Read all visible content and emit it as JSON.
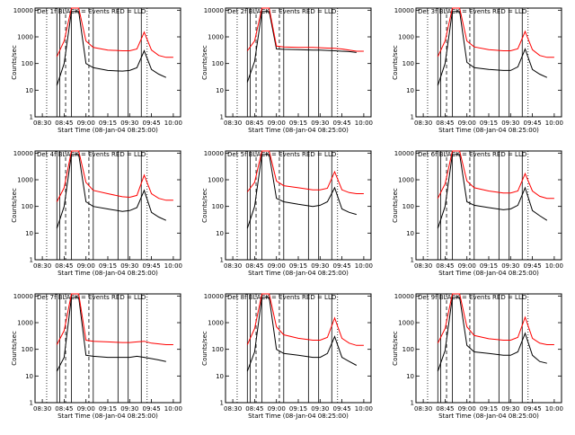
{
  "ylabel": "Counts/sec",
  "xlabel": "Start Time (08-Jan-04 08:25:00)",
  "ytick_labels": [
    "1",
    "10",
    "100",
    "1000",
    "10000"
  ],
  "xtick_labels": [
    "08:30",
    "08:45",
    "09:00",
    "09:15",
    "09:30",
    "09:45",
    "10:00"
  ],
  "colors": {
    "events": "#000000",
    "lld": "#ff0000"
  },
  "chart_data": [
    {
      "type": "line",
      "title": "Det 1f BLACK = Events  RED = LLD",
      "scale": "log",
      "ylim": [
        1,
        12000
      ],
      "x": [
        "08:25",
        "08:40",
        "08:45",
        "08:50",
        "08:55",
        "09:00",
        "09:05",
        "09:15",
        "09:25",
        "09:30",
        "09:35",
        "09:40",
        "09:45",
        "09:50",
        "09:55",
        "10:00"
      ],
      "series": [
        {
          "name": "Events",
          "values": [
            null,
            15,
            100,
            9000,
            9000,
            100,
            70,
            55,
            52,
            55,
            70,
            300,
            60,
            40,
            30,
            null
          ]
        },
        {
          "name": "LLD",
          "values": [
            null,
            180,
            700,
            12000,
            12000,
            700,
            400,
            320,
            300,
            300,
            350,
            1500,
            320,
            200,
            170,
            170
          ]
        }
      ]
    },
    {
      "type": "line",
      "title": "Det 2f BLACK = Events  RED = LLD",
      "scale": "log",
      "ylim": [
        1,
        12000
      ],
      "x": [
        "08:25",
        "08:40",
        "08:45",
        "08:50",
        "08:55",
        "09:00",
        "09:05",
        "09:15",
        "09:25",
        "09:30",
        "09:35",
        "09:40",
        "09:45",
        "09:50",
        "09:55",
        "10:00"
      ],
      "series": [
        {
          "name": "Events",
          "values": [
            null,
            20,
            120,
            9000,
            9000,
            350,
            340,
            330,
            320,
            320,
            310,
            300,
            290,
            280,
            260,
            null
          ]
        },
        {
          "name": "LLD",
          "values": [
            null,
            300,
            700,
            12000,
            12000,
            450,
            420,
            400,
            400,
            390,
            380,
            370,
            350,
            320,
            290,
            290
          ]
        }
      ]
    },
    {
      "type": "line",
      "title": "Det 3f BLACK = Events  RED = LLD",
      "scale": "log",
      "ylim": [
        1,
        12000
      ],
      "x": [
        "08:25",
        "08:40",
        "08:45",
        "08:50",
        "08:55",
        "09:00",
        "09:05",
        "09:15",
        "09:25",
        "09:30",
        "09:35",
        "09:40",
        "09:45",
        "09:50",
        "09:55",
        "10:00"
      ],
      "series": [
        {
          "name": "Events",
          "values": [
            null,
            15,
            100,
            9000,
            9000,
            110,
            70,
            60,
            55,
            55,
            75,
            350,
            60,
            40,
            30,
            null
          ]
        },
        {
          "name": "LLD",
          "values": [
            null,
            180,
            700,
            12000,
            12000,
            700,
            420,
            330,
            300,
            300,
            360,
            1600,
            330,
            200,
            170,
            170
          ]
        }
      ]
    },
    {
      "type": "line",
      "title": "Det 4f BLACK = Events  RED = LLD",
      "scale": "log",
      "ylim": [
        1,
        12000
      ],
      "x": [
        "08:25",
        "08:40",
        "08:45",
        "08:50",
        "08:55",
        "09:00",
        "09:05",
        "09:15",
        "09:25",
        "09:30",
        "09:35",
        "09:40",
        "09:45",
        "09:50",
        "09:55",
        "10:00"
      ],
      "series": [
        {
          "name": "Events",
          "values": [
            null,
            15,
            100,
            9000,
            9000,
            150,
            100,
            80,
            65,
            70,
            90,
            400,
            60,
            40,
            30,
            null
          ]
        },
        {
          "name": "LLD",
          "values": [
            null,
            150,
            500,
            12000,
            12000,
            800,
            400,
            300,
            230,
            220,
            260,
            1500,
            300,
            200,
            170,
            170
          ]
        }
      ]
    },
    {
      "type": "line",
      "title": "Det 5f BLACK = Events  RED = LLD",
      "scale": "log",
      "ylim": [
        1,
        12000
      ],
      "x": [
        "08:25",
        "08:40",
        "08:45",
        "08:50",
        "08:55",
        "09:00",
        "09:05",
        "09:15",
        "09:25",
        "09:30",
        "09:35",
        "09:40",
        "09:45",
        "09:50",
        "09:55",
        "10:00"
      ],
      "series": [
        {
          "name": "Events",
          "values": [
            null,
            15,
            100,
            9000,
            9000,
            200,
            150,
            120,
            100,
            110,
            150,
            500,
            80,
            60,
            50,
            null
          ]
        },
        {
          "name": "LLD",
          "values": [
            null,
            350,
            800,
            12000,
            12000,
            900,
            600,
            500,
            420,
            420,
            480,
            2000,
            420,
            330,
            300,
            300
          ]
        }
      ]
    },
    {
      "type": "line",
      "title": "Det 6f BLACK = Events  RED = LLD",
      "scale": "log",
      "ylim": [
        1,
        12000
      ],
      "x": [
        "08:25",
        "08:40",
        "08:45",
        "08:50",
        "08:55",
        "09:00",
        "09:05",
        "09:15",
        "09:25",
        "09:30",
        "09:35",
        "09:40",
        "09:45",
        "09:50",
        "09:55",
        "10:00"
      ],
      "series": [
        {
          "name": "Events",
          "values": [
            null,
            15,
            100,
            9000,
            9000,
            150,
            110,
            90,
            75,
            80,
            110,
            500,
            70,
            45,
            30,
            null
          ]
        },
        {
          "name": "LLD",
          "values": [
            null,
            200,
            700,
            12000,
            12000,
            900,
            500,
            380,
            320,
            320,
            380,
            1700,
            380,
            240,
            200,
            200
          ]
        }
      ]
    },
    {
      "type": "line",
      "title": "Det 7f BLACK = Events  RED = LLD",
      "scale": "log",
      "ylim": [
        1,
        12000
      ],
      "x": [
        "08:25",
        "08:40",
        "08:45",
        "08:50",
        "08:55",
        "09:00",
        "09:05",
        "09:15",
        "09:25",
        "09:30",
        "09:35",
        "09:40",
        "09:45",
        "09:50",
        "09:55",
        "10:00"
      ],
      "series": [
        {
          "name": "Events",
          "values": [
            null,
            15,
            50,
            9000,
            9000,
            60,
            55,
            50,
            50,
            50,
            55,
            50,
            45,
            40,
            35,
            null
          ]
        },
        {
          "name": "LLD",
          "values": [
            null,
            150,
            500,
            12000,
            12000,
            220,
            200,
            190,
            180,
            180,
            190,
            200,
            170,
            160,
            150,
            150
          ]
        }
      ]
    },
    {
      "type": "line",
      "title": "Det 8f BLACK = Events  RED = LLD",
      "scale": "log",
      "ylim": [
        1,
        12000
      ],
      "x": [
        "08:25",
        "08:40",
        "08:45",
        "08:50",
        "08:55",
        "09:00",
        "09:05",
        "09:15",
        "09:25",
        "09:30",
        "09:35",
        "09:40",
        "09:45",
        "09:50",
        "09:55",
        "10:00"
      ],
      "series": [
        {
          "name": "Events",
          "values": [
            null,
            15,
            80,
            9000,
            9000,
            100,
            70,
            60,
            50,
            50,
            70,
            300,
            50,
            35,
            25,
            null
          ]
        },
        {
          "name": "LLD",
          "values": [
            null,
            150,
            600,
            12000,
            12000,
            700,
            350,
            260,
            220,
            220,
            280,
            1500,
            260,
            170,
            140,
            140
          ]
        }
      ]
    },
    {
      "type": "line",
      "title": "Det 9f BLACK = Events  RED = LLD",
      "scale": "log",
      "ylim": [
        1,
        12000
      ],
      "x": [
        "08:25",
        "08:40",
        "08:45",
        "08:50",
        "08:55",
        "09:00",
        "09:05",
        "09:15",
        "09:25",
        "09:30",
        "09:35",
        "09:40",
        "09:45",
        "09:50",
        "09:55",
        "10:00"
      ],
      "series": [
        {
          "name": "Events",
          "values": [
            null,
            15,
            90,
            9000,
            9000,
            140,
            80,
            70,
            60,
            60,
            80,
            400,
            60,
            35,
            30,
            null
          ]
        },
        {
          "name": "LLD",
          "values": [
            null,
            170,
            600,
            12000,
            12000,
            700,
            330,
            250,
            220,
            220,
            280,
            1600,
            260,
            170,
            150,
            150
          ]
        }
      ]
    }
  ]
}
